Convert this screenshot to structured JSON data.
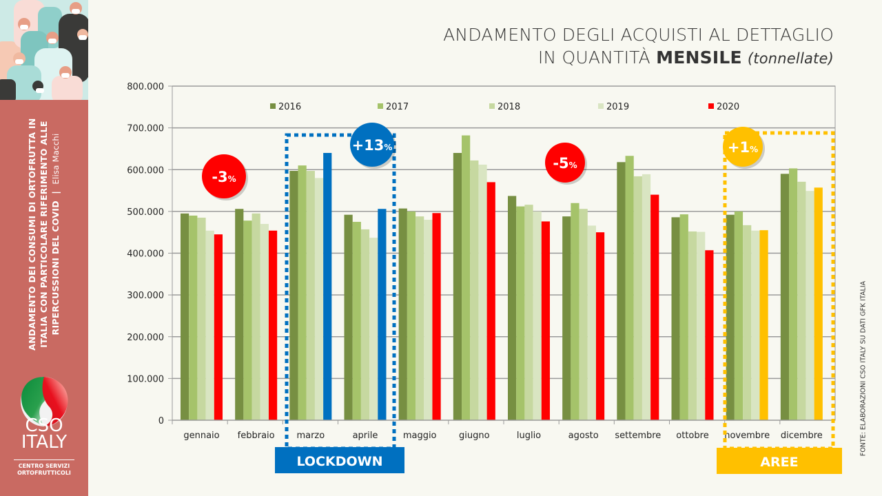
{
  "sidebar": {
    "title_line1": "ANDAMENTO DEI CONSUMI DI ORTOFRUTTA IN",
    "title_line2": "ITALIA CON PARTICOLARE RIFERIMENTO ALLE",
    "title_line3": "RIPERCUSSIONI DEL COVID",
    "author": "Elisa Macchi",
    "logo_name_line1": "CSO",
    "logo_name_line2": "ITALY",
    "logo_sub_line1": "CENTRO SERVIZI",
    "logo_sub_line2": "ORTOFRUTTICOLI"
  },
  "header": {
    "title_line1": "ANDAMENTO DEGLI ACQUISTI AL DETTAGLIO",
    "title_line2_prefix": "IN QUANTITÀ ",
    "title_line2_bold": "MENSILE",
    "title_line2_unit": "(tonnellate)"
  },
  "source_note": "FONTE: ELABORAZIONI CSO ITALY SU DATI GFK ITALIA",
  "colors": {
    "s2016": "#778f42",
    "s2017": "#a5c36a",
    "s2018": "#c6d8a0",
    "s2019": "#d9e5c2",
    "s2020": "#ff0000",
    "lockdown": "#0070c0",
    "aree": "#ffc000",
    "sidebar": "#c96a62"
  },
  "annotations": {
    "badges": [
      {
        "label": "-3",
        "suffix": "%",
        "color": "#ff0000"
      },
      {
        "label": "+13",
        "suffix": "%",
        "color": "#0070c0"
      },
      {
        "label": "-5",
        "suffix": "%",
        "color": "#ff0000"
      },
      {
        "label": "+1",
        "suffix": "%",
        "color": "#ffc000"
      }
    ],
    "lockdown_label": "LOCKDOWN",
    "aree_label": "AREE"
  },
  "chart_data": {
    "type": "bar",
    "title": "ANDAMENTO DEGLI ACQUISTI AL DETTAGLIO IN QUANTITÀ MENSILE (tonnellate)",
    "xlabel": "",
    "ylabel": "",
    "ylim": [
      0,
      800000
    ],
    "yticks": [
      0,
      100000,
      200000,
      300000,
      400000,
      500000,
      600000,
      700000,
      800000
    ],
    "ytick_labels": [
      "0",
      "100.000",
      "200.000",
      "300.000",
      "400.000",
      "500.000",
      "600.000",
      "700.000",
      "800.000"
    ],
    "grid": true,
    "legend_position": "top",
    "categories": [
      "gennaio",
      "febbraio",
      "marzo",
      "aprile",
      "maggio",
      "giugno",
      "luglio",
      "agosto",
      "settembre",
      "ottobre",
      "novembre",
      "dicembre"
    ],
    "series": [
      {
        "name": "2016",
        "values": [
          495000,
          506000,
          597000,
          492000,
          507000,
          640000,
          537000,
          488000,
          618000,
          486000,
          492000,
          590000
        ]
      },
      {
        "name": "2017",
        "values": [
          490000,
          478000,
          610000,
          475000,
          500000,
          682000,
          512000,
          520000,
          633000,
          493000,
          500000,
          603000
        ]
      },
      {
        "name": "2018",
        "values": [
          485000,
          495000,
          597000,
          457000,
          488000,
          622000,
          516000,
          506000,
          584000,
          452000,
          467000,
          571000
        ]
      },
      {
        "name": "2019",
        "values": [
          454000,
          470000,
          580000,
          437000,
          480000,
          612000,
          500000,
          466000,
          589000,
          451000,
          454000,
          549000
        ]
      },
      {
        "name": "2020",
        "values": [
          445000,
          454000,
          640000,
          506000,
          496000,
          570000,
          476000,
          450000,
          540000,
          407000,
          455000,
          557000
        ]
      }
    ],
    "highlight_2020_colors": [
      "#ff0000",
      "#ff0000",
      "#0070c0",
      "#0070c0",
      "#ff0000",
      "#ff0000",
      "#ff0000",
      "#ff0000",
      "#ff0000",
      "#ff0000",
      "#ffc000",
      "#ffc000"
    ],
    "annotations": [
      {
        "text": "-3%",
        "near": "gennaio-febbraio"
      },
      {
        "text": "+13%",
        "near": "marzo-aprile (LOCKDOWN)"
      },
      {
        "text": "-5%",
        "near": "maggio-ottobre"
      },
      {
        "text": "+1%",
        "near": "novembre-dicembre (AREE)"
      }
    ]
  }
}
